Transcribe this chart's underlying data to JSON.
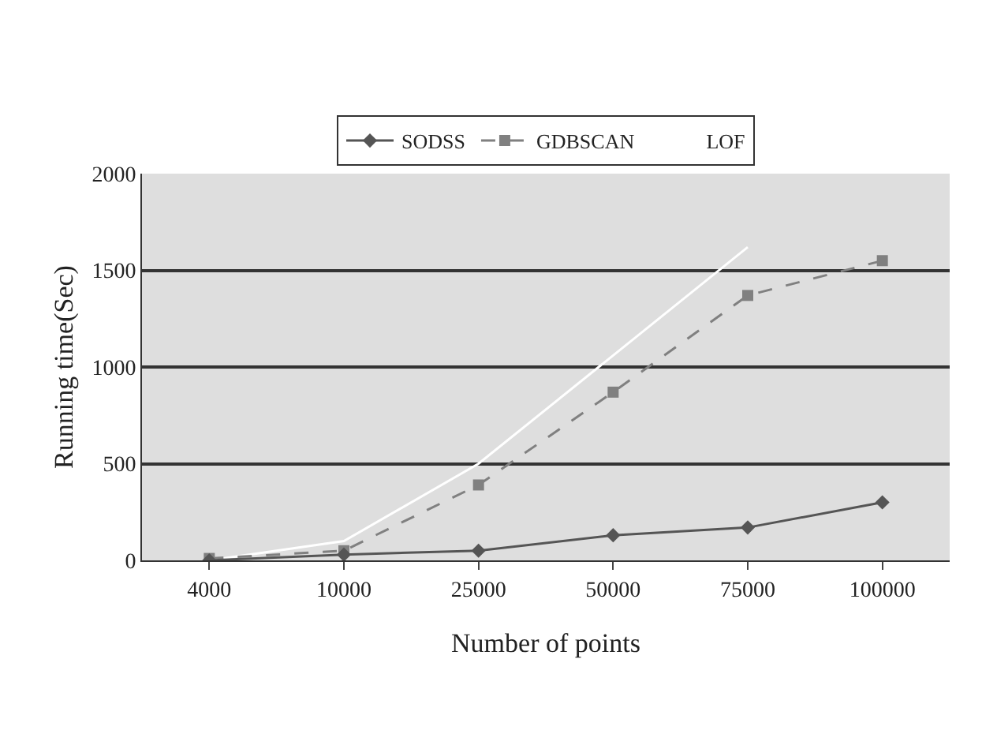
{
  "chart_data": {
    "type": "line",
    "xlabel": "Number of points",
    "ylabel": "Running time(Sec)",
    "categories": [
      "4000",
      "10000",
      "25000",
      "50000",
      "75000",
      "100000"
    ],
    "series": [
      {
        "name": "SODSS",
        "color": "#555555",
        "marker": "diamond",
        "line_style": "solid",
        "values": [
          0,
          30,
          50,
          130,
          170,
          300
        ]
      },
      {
        "name": "GDBSCAN",
        "color": "#808080",
        "marker": "square",
        "line_style": "dashed",
        "values": [
          10,
          50,
          390,
          870,
          1370,
          1550
        ]
      },
      {
        "name": "LOF",
        "color": "#ffffff",
        "marker": "none",
        "line_style": "solid",
        "values": [
          0,
          100,
          500,
          1060,
          1620,
          null
        ]
      }
    ],
    "ylim": [
      0,
      2000
    ],
    "yticks": [
      0,
      500,
      1000,
      1500,
      2000
    ],
    "grid": "y",
    "legend": "top"
  }
}
